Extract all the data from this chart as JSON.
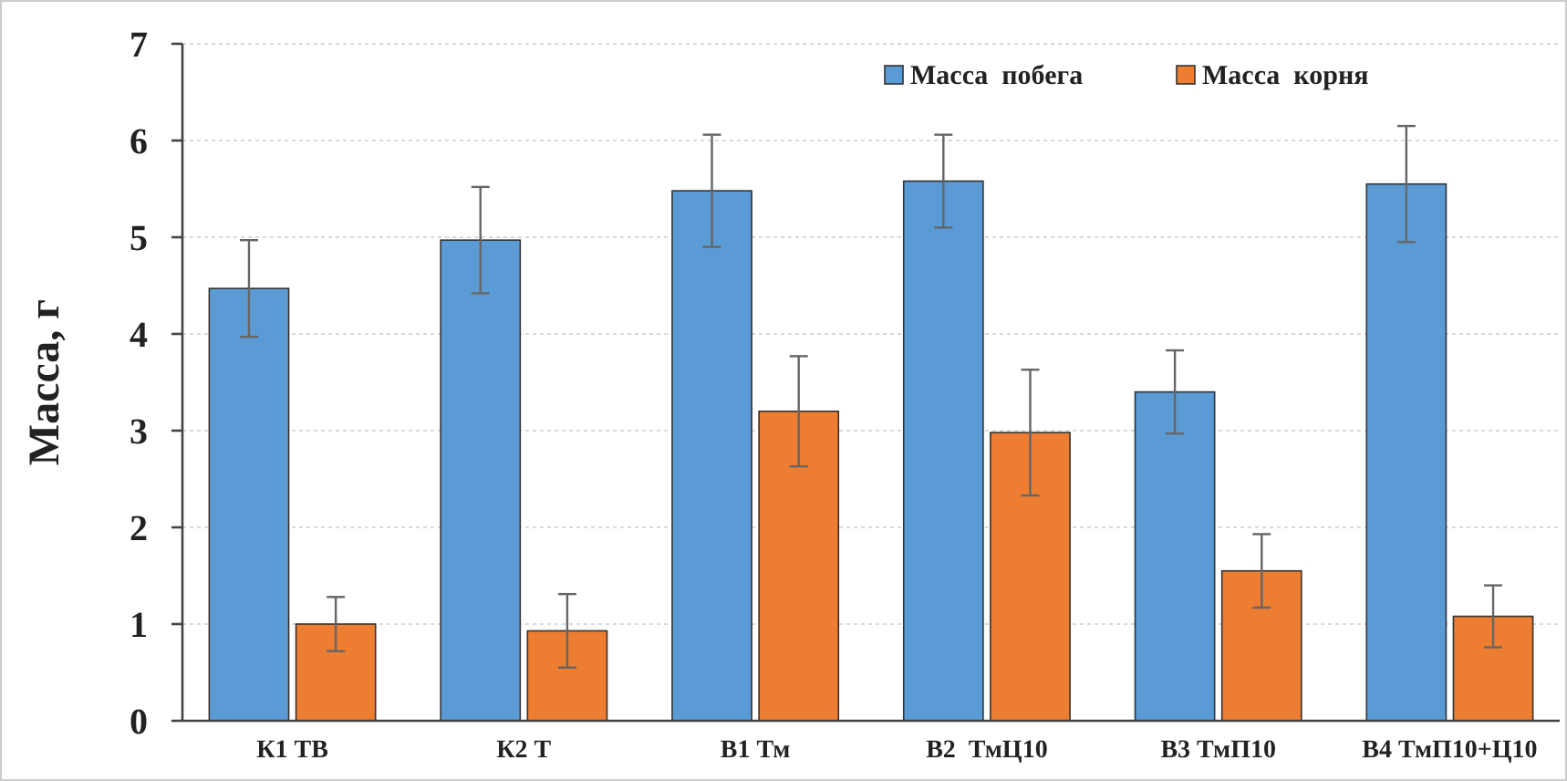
{
  "chart_data": {
    "type": "bar",
    "ylabel": "Масса, г",
    "categories": [
      "К1 ТВ",
      "К2 Т",
      "В1 Тм",
      "В2  ТмЦ10",
      "В3 ТмП10",
      "В4 ТмП10+Ц10"
    ],
    "series": [
      {
        "name": "Масса  побега",
        "color": "#5b9bd5",
        "values": [
          4.47,
          4.97,
          5.48,
          5.58,
          3.4,
          5.55
        ],
        "errors": [
          0.5,
          0.55,
          0.58,
          0.48,
          0.43,
          0.6
        ]
      },
      {
        "name": "Масса  корня",
        "color": "#ed7d31",
        "values": [
          1.0,
          0.93,
          3.2,
          2.98,
          1.55,
          1.08
        ],
        "errors": [
          0.28,
          0.38,
          0.57,
          0.65,
          0.38,
          0.32
        ]
      }
    ],
    "ylim": [
      0,
      7
    ],
    "yticks": [
      0,
      1,
      2,
      3,
      4,
      5,
      6,
      7
    ],
    "grid": "y",
    "legend": "top right"
  }
}
